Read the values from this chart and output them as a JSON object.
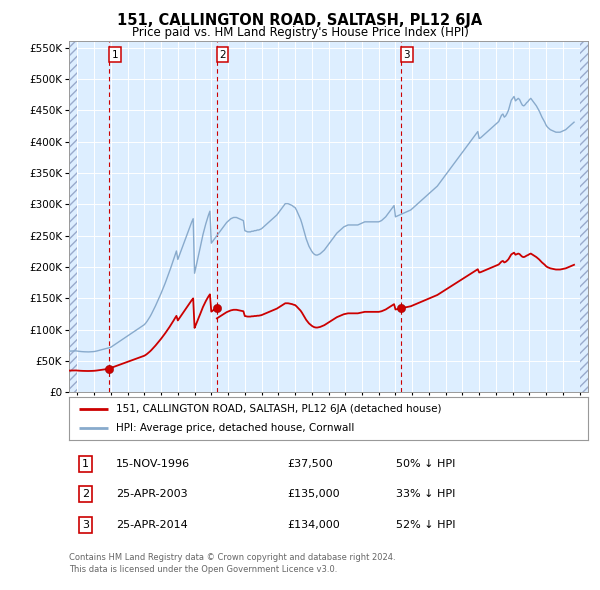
{
  "title": "151, CALLINGTON ROAD, SALTASH, PL12 6JA",
  "subtitle": "Price paid vs. HM Land Registry's House Price Index (HPI)",
  "legend_label_red": "151, CALLINGTON ROAD, SALTASH, PL12 6JA (detached house)",
  "legend_label_blue": "HPI: Average price, detached house, Cornwall",
  "footer_line1": "Contains HM Land Registry data © Crown copyright and database right 2024.",
  "footer_line2": "This data is licensed under the Open Government Licence v3.0.",
  "transactions": [
    {
      "num": 1,
      "date": "15-NOV-1996",
      "price": 37500,
      "pct": "50%",
      "dir": "↓",
      "year": 1996.88
    },
    {
      "num": 2,
      "date": "25-APR-2003",
      "price": 135000,
      "pct": "33%",
      "dir": "↓",
      "year": 2003.32
    },
    {
      "num": 3,
      "date": "25-APR-2014",
      "price": 134000,
      "pct": "52%",
      "dir": "↓",
      "year": 2014.32
    }
  ],
  "ylim": [
    0,
    560000
  ],
  "yticks": [
    0,
    50000,
    100000,
    150000,
    200000,
    250000,
    300000,
    350000,
    400000,
    450000,
    500000,
    550000
  ],
  "xlim_start": 1994.5,
  "xlim_end": 2025.5,
  "background_color": "#ddeeff",
  "grid_color": "#ffffff",
  "red_line_color": "#cc0000",
  "blue_line_color": "#88aacc",
  "vline_color": "#cc0000",
  "hatch_color": "#aabbcc",
  "hpi_monthly": {
    "start_year": 1994,
    "start_month": 1,
    "values": [
      64000,
      64500,
      65000,
      65200,
      65400,
      65600,
      65700,
      65800,
      65900,
      66000,
      66100,
      66200,
      65800,
      65500,
      65200,
      65000,
      64800,
      64700,
      64600,
      64500,
      64500,
      64600,
      64700,
      64900,
      65100,
      65500,
      66000,
      66600,
      67200,
      67800,
      68400,
      69000,
      69600,
      70200,
      70700,
      71200,
      72000,
      73500,
      75000,
      76500,
      78000,
      79500,
      81000,
      82500,
      84000,
      85500,
      87000,
      88500,
      90000,
      91500,
      93000,
      94500,
      96000,
      97500,
      99000,
      100500,
      102000,
      103500,
      105000,
      106500,
      108000,
      110500,
      113500,
      117000,
      120500,
      124500,
      129000,
      133500,
      138000,
      143000,
      148000,
      153000,
      158000,
      163500,
      169000,
      174500,
      180500,
      186500,
      192500,
      199000,
      205500,
      212000,
      219000,
      225500,
      212000,
      218000,
      224000,
      230000,
      236000,
      242000,
      248000,
      254000,
      260000,
      266000,
      272000,
      277000,
      190000,
      200000,
      210000,
      220500,
      230500,
      241000,
      251500,
      260000,
      268500,
      276000,
      283000,
      289000,
      238000,
      241000,
      244000,
      247000,
      250000,
      253000,
      256000,
      259000,
      262000,
      265000,
      268000,
      271000,
      273000,
      275000,
      277000,
      278000,
      279000,
      279000,
      279000,
      278000,
      277000,
      276000,
      275000,
      274000,
      258000,
      257000,
      256000,
      256000,
      256000,
      257000,
      257000,
      258000,
      258000,
      259000,
      259000,
      260000,
      261000,
      263000,
      265000,
      267000,
      269000,
      271000,
      273000,
      275000,
      277000,
      279000,
      281000,
      283000,
      286000,
      289000,
      292000,
      295000,
      298000,
      301000,
      301000,
      301000,
      300000,
      299000,
      298000,
      296000,
      295000,
      291000,
      286000,
      281000,
      276000,
      269000,
      261000,
      253000,
      245000,
      239000,
      233000,
      229000,
      225000,
      222000,
      220000,
      219000,
      219000,
      220000,
      221000,
      223000,
      225000,
      227000,
      230000,
      233000,
      236000,
      239000,
      242000,
      245000,
      248000,
      251000,
      254000,
      256000,
      258000,
      260000,
      262000,
      264000,
      265000,
      266000,
      267000,
      267000,
      267000,
      267000,
      267000,
      267000,
      267000,
      267000,
      268000,
      269000,
      270000,
      271000,
      272000,
      272000,
      272000,
      272000,
      272000,
      272000,
      272000,
      272000,
      272000,
      272000,
      272000,
      273000,
      274000,
      276000,
      278000,
      280000,
      283000,
      286000,
      289000,
      292000,
      295000,
      298000,
      280000,
      281000,
      282000,
      283000,
      284000,
      285000,
      286000,
      287000,
      288000,
      289000,
      290000,
      291000,
      293000,
      295000,
      297000,
      299000,
      301000,
      303000,
      305000,
      307000,
      309000,
      311000,
      313000,
      315000,
      317000,
      319000,
      321000,
      323000,
      325000,
      327000,
      329000,
      332000,
      335000,
      338000,
      341000,
      344000,
      347000,
      350000,
      353000,
      356000,
      359000,
      362000,
      365000,
      368000,
      371000,
      374000,
      377000,
      380000,
      383000,
      386000,
      389000,
      392000,
      395000,
      398000,
      401000,
      404000,
      407000,
      410000,
      413000,
      416000,
      405000,
      406000,
      408000,
      410000,
      412000,
      414000,
      416000,
      418000,
      420000,
      422000,
      424000,
      426000,
      428000,
      430000,
      432000,
      437000,
      442000,
      444000,
      439000,
      441000,
      445000,
      450000,
      458000,
      466000,
      469000,
      472000,
      465000,
      467000,
      469000,
      467000,
      462000,
      458000,
      457000,
      459000,
      462000,
      464000,
      467000,
      469000,
      466000,
      463000,
      460000,
      457000,
      453000,
      449000,
      444000,
      439000,
      435000,
      431000,
      426000,
      423000,
      421000,
      419000,
      418000,
      417000,
      416000,
      415000,
      415000,
      415000,
      415000,
      416000,
      417000,
      418000,
      419000,
      421000,
      423000,
      425000,
      427000,
      429000,
      431000
    ]
  }
}
